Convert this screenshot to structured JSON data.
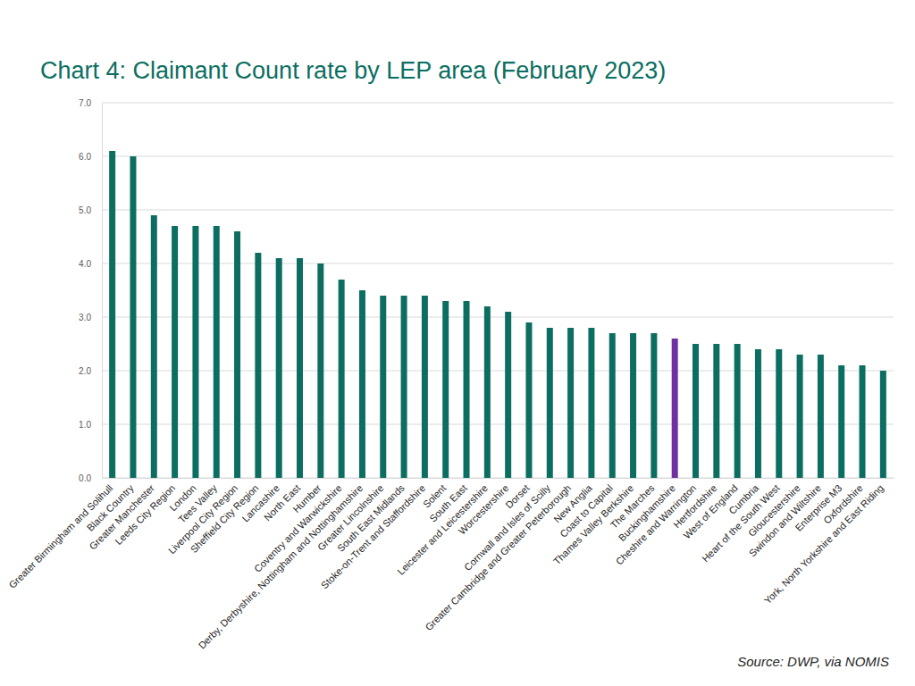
{
  "chart_data": {
    "type": "bar",
    "title": "Chart 4: Claimant Count rate by LEP area (February 2023)",
    "source": "Source: DWP, via NOMIS",
    "categories": [
      "Greater Birmingham and Solihull",
      "Black Country",
      "Greater Manchester",
      "Leeds City Region",
      "London",
      "Tees Valley",
      "Liverpool City Region",
      "Sheffield City Region",
      "Lancashire",
      "North East",
      "Humber",
      "Coventry and Warwickshire",
      "Derby, Derbyshire, Nottingham and Nottinghamshire",
      "Greater Lincolnshire",
      "South East Midlands",
      "Stoke-on-Trent and Staffordshire",
      "Solent",
      "South East",
      "Leicester and Leicestershire",
      "Worcestershire",
      "Dorset",
      "Cornwall and Isles of Scilly",
      "Greater Cambridge and Greater Peterborough",
      "New Anglia",
      "Coast to Capital",
      "Thames Valley Berkshire",
      "The Marches",
      "Buckinghamshire",
      "Cheshire and Warrington",
      "Hertfordshire",
      "West of England",
      "Cumbria",
      "Heart of the South West",
      "Gloucestershire",
      "Swindon and Wiltshire",
      "Enterprise M3",
      "Oxfordshire",
      "York, North Yorkshire and East Riding"
    ],
    "values": [
      6.1,
      6.0,
      4.9,
      4.7,
      4.7,
      4.7,
      4.6,
      4.2,
      4.1,
      4.1,
      4.0,
      3.7,
      3.5,
      3.4,
      3.4,
      3.4,
      3.3,
      3.3,
      3.2,
      3.1,
      2.9,
      2.8,
      2.8,
      2.8,
      2.7,
      2.7,
      2.7,
      2.6,
      2.5,
      2.5,
      2.5,
      2.4,
      2.4,
      2.3,
      2.3,
      2.1,
      2.1,
      2.0
    ],
    "colors": [
      "#0b6e61",
      "#0b6e61",
      "#0b6e61",
      "#0b6e61",
      "#0b6e61",
      "#0b6e61",
      "#0b6e61",
      "#0b6e61",
      "#0b6e61",
      "#0b6e61",
      "#0b6e61",
      "#0b6e61",
      "#0b6e61",
      "#0b6e61",
      "#0b6e61",
      "#0b6e61",
      "#0b6e61",
      "#0b6e61",
      "#0b6e61",
      "#0b6e61",
      "#0b6e61",
      "#0b6e61",
      "#0b6e61",
      "#0b6e61",
      "#0b6e61",
      "#0b6e61",
      "#0b6e61",
      "#7030a0",
      "#0b6e61",
      "#0b6e61",
      "#0b6e61",
      "#0b6e61",
      "#0b6e61",
      "#0b6e61",
      "#0b6e61",
      "#0b6e61",
      "#0b6e61",
      "#0b6e61"
    ],
    "ylim": [
      0,
      7
    ],
    "yticks": [
      {
        "value": 0,
        "label": "0.0"
      },
      {
        "value": 1,
        "label": "1.0"
      },
      {
        "value": 2,
        "label": "2.0"
      },
      {
        "value": 3,
        "label": "3.0"
      },
      {
        "value": 4,
        "label": "4.0"
      },
      {
        "value": 5,
        "label": "5.0"
      },
      {
        "value": 6,
        "label": "6.0"
      },
      {
        "value": 7,
        "label": "7.0"
      }
    ],
    "grid": true
  }
}
